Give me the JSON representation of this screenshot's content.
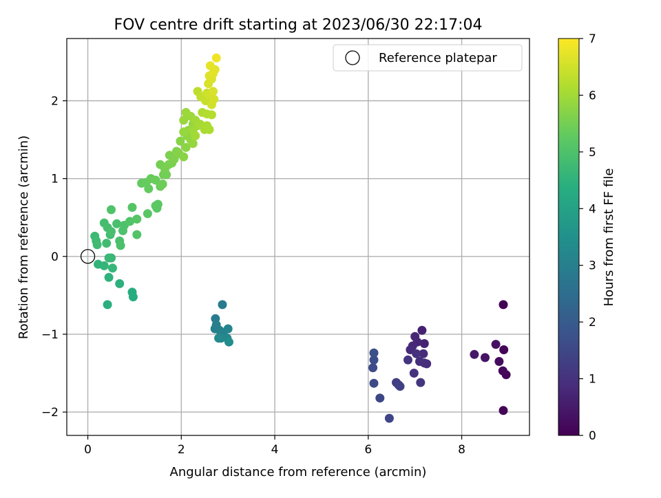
{
  "chart_data": {
    "type": "scatter",
    "title": "FOV centre drift starting at 2023/06/30 22:17:04",
    "xlabel": "Angular distance from reference (arcmin)",
    "ylabel": "Rotation from reference (arcmin)",
    "xlim": [
      -0.45,
      9.45
    ],
    "ylim": [
      -2.3,
      2.8
    ],
    "xticks": [
      0,
      2,
      4,
      6,
      8
    ],
    "xtick_labels": [
      "0",
      "2",
      "4",
      "6",
      "8"
    ],
    "yticks": [
      -2,
      -1,
      0,
      1,
      2
    ],
    "ytick_labels": [
      "−2",
      "−1",
      "0",
      "1",
      "2"
    ],
    "grid": true,
    "legend": {
      "placement": "top-right",
      "entries": [
        "Reference platepar"
      ]
    },
    "reference_point": {
      "label": "Reference platepar",
      "x": 0,
      "y": 0
    },
    "colorbar": {
      "label": "Hours from first FF file",
      "colormap": "viridis",
      "range": [
        0,
        7
      ],
      "ticks": [
        0,
        1,
        2,
        3,
        4,
        5,
        6,
        7
      ],
      "tick_labels": [
        "0",
        "1",
        "2",
        "3",
        "4",
        "5",
        "6",
        "7"
      ]
    },
    "points": [
      [
        8.89,
        -0.62,
        0.05
      ],
      [
        8.9,
        -1.2,
        0.07
      ],
      [
        8.95,
        -1.52,
        0.1
      ],
      [
        8.88,
        -1.47,
        0.12
      ],
      [
        8.89,
        -1.98,
        0.08
      ],
      [
        8.8,
        -1.35,
        0.22
      ],
      [
        8.73,
        -1.13,
        0.3
      ],
      [
        8.5,
        -1.3,
        0.38
      ],
      [
        8.27,
        -1.26,
        0.45
      ],
      [
        7.15,
        -0.95,
        0.62
      ],
      [
        7.2,
        -1.12,
        0.68
      ],
      [
        7.05,
        -1.1,
        0.72
      ],
      [
        7.0,
        -1.03,
        0.75
      ],
      [
        6.95,
        -1.15,
        0.8
      ],
      [
        6.9,
        -1.2,
        0.82
      ],
      [
        7.18,
        -1.25,
        0.85
      ],
      [
        7.25,
        -1.38,
        0.88
      ],
      [
        7.1,
        -1.35,
        0.92
      ],
      [
        7.2,
        -1.37,
        0.94
      ],
      [
        7.03,
        -1.25,
        0.97
      ],
      [
        6.98,
        -1.5,
        1.0
      ],
      [
        6.85,
        -1.33,
        1.05
      ],
      [
        7.12,
        -1.62,
        1.08
      ],
      [
        6.6,
        -1.62,
        1.25
      ],
      [
        6.65,
        -1.65,
        1.3
      ],
      [
        6.68,
        -1.67,
        1.35
      ],
      [
        6.45,
        -2.08,
        1.45
      ],
      [
        6.25,
        -1.82,
        1.5
      ],
      [
        6.12,
        -1.63,
        1.55
      ],
      [
        6.1,
        -1.43,
        1.6
      ],
      [
        6.12,
        -1.33,
        1.65
      ],
      [
        6.12,
        -1.24,
        1.7
      ],
      [
        2.88,
        -0.62,
        2.85
      ],
      [
        2.73,
        -0.8,
        2.9
      ],
      [
        2.75,
        -0.88,
        2.95
      ],
      [
        2.72,
        -0.93,
        3.0
      ],
      [
        2.82,
        -0.95,
        3.05
      ],
      [
        2.9,
        -0.98,
        3.1
      ],
      [
        3.0,
        -0.93,
        3.15
      ],
      [
        2.98,
        -1.05,
        3.2
      ],
      [
        2.85,
        -1.05,
        3.25
      ],
      [
        2.8,
        -1.05,
        3.3
      ],
      [
        3.02,
        -1.1,
        3.35
      ],
      [
        0.95,
        -0.46,
        4.3
      ],
      [
        0.97,
        -0.52,
        4.35
      ],
      [
        0.42,
        -0.62,
        4.4
      ],
      [
        0.68,
        -0.35,
        4.45
      ],
      [
        0.45,
        -0.27,
        4.5
      ],
      [
        0.22,
        -0.1,
        4.55
      ],
      [
        0.35,
        -0.12,
        4.58
      ],
      [
        0.53,
        -0.15,
        4.62
      ],
      [
        0.5,
        -0.02,
        4.65
      ],
      [
        0.45,
        -0.02,
        4.68
      ],
      [
        0.15,
        0.26,
        4.72
      ],
      [
        0.18,
        0.2,
        4.75
      ],
      [
        0.2,
        0.15,
        4.78
      ],
      [
        0.4,
        0.17,
        4.8
      ],
      [
        0.48,
        0.28,
        4.82
      ],
      [
        0.35,
        0.43,
        4.85
      ],
      [
        0.42,
        0.37,
        4.87
      ],
      [
        0.5,
        0.32,
        4.9
      ],
      [
        0.62,
        0.42,
        4.92
      ],
      [
        0.68,
        0.2,
        4.94
      ],
      [
        0.7,
        0.14,
        4.96
      ],
      [
        0.75,
        0.33,
        4.98
      ],
      [
        0.78,
        0.4,
        5.0
      ],
      [
        0.5,
        0.6,
        5.02
      ],
      [
        0.9,
        0.45,
        5.05
      ],
      [
        1.05,
        0.28,
        5.07
      ],
      [
        0.95,
        0.63,
        5.1
      ],
      [
        1.05,
        0.48,
        5.13
      ],
      [
        1.28,
        0.55,
        5.15
      ],
      [
        1.48,
        0.62,
        5.18
      ],
      [
        1.5,
        0.67,
        5.2
      ],
      [
        1.45,
        0.65,
        5.22
      ],
      [
        1.15,
        0.94,
        5.28
      ],
      [
        1.3,
        0.87,
        5.3
      ],
      [
        1.25,
        0.95,
        5.32
      ],
      [
        1.35,
        1.0,
        5.35
      ],
      [
        1.45,
        0.98,
        5.38
      ],
      [
        1.55,
        0.9,
        5.4
      ],
      [
        1.6,
        0.93,
        5.43
      ],
      [
        1.62,
        1.05,
        5.45
      ],
      [
        1.68,
        1.05,
        5.48
      ],
      [
        1.55,
        1.18,
        5.5
      ],
      [
        1.65,
        1.12,
        5.52
      ],
      [
        1.73,
        1.18,
        5.55
      ],
      [
        1.8,
        1.2,
        5.58
      ],
      [
        1.75,
        1.3,
        5.6
      ],
      [
        1.85,
        1.25,
        5.62
      ],
      [
        1.9,
        1.35,
        5.65
      ],
      [
        1.95,
        1.32,
        5.68
      ],
      [
        1.98,
        1.48,
        5.7
      ],
      [
        2.05,
        1.28,
        5.72
      ],
      [
        2.1,
        1.4,
        5.75
      ],
      [
        2.12,
        1.55,
        5.78
      ],
      [
        2.15,
        1.62,
        5.8
      ],
      [
        2.2,
        1.5,
        5.82
      ],
      [
        2.25,
        1.7,
        5.85
      ],
      [
        2.25,
        1.45,
        5.87
      ],
      [
        2.05,
        1.6,
        5.88
      ],
      [
        2.05,
        1.75,
        5.9
      ],
      [
        2.1,
        1.85,
        5.92
      ],
      [
        2.2,
        1.8,
        5.94
      ],
      [
        2.25,
        1.62,
        5.96
      ],
      [
        2.3,
        1.75,
        5.98
      ],
      [
        2.35,
        1.68,
        6.0
      ],
      [
        2.3,
        1.55,
        6.02
      ],
      [
        2.4,
        1.7,
        6.05
      ],
      [
        2.5,
        1.63,
        6.08
      ],
      [
        2.55,
        1.68,
        6.1
      ],
      [
        2.6,
        1.63,
        6.12
      ],
      [
        2.45,
        1.85,
        6.15
      ],
      [
        2.55,
        1.83,
        6.18
      ],
      [
        2.65,
        1.82,
        6.2
      ],
      [
        2.35,
        2.12,
        6.3
      ],
      [
        2.42,
        2.05,
        6.35
      ],
      [
        2.52,
        2.0,
        6.4
      ],
      [
        2.55,
        2.1,
        6.45
      ],
      [
        2.6,
        2.08,
        6.5
      ],
      [
        2.65,
        1.95,
        6.52
      ],
      [
        2.7,
        2.02,
        6.55
      ],
      [
        2.68,
        2.12,
        6.58
      ],
      [
        2.58,
        2.22,
        6.6
      ],
      [
        2.65,
        2.28,
        6.62
      ],
      [
        2.6,
        2.32,
        6.65
      ],
      [
        2.68,
        2.35,
        6.68
      ],
      [
        2.72,
        2.4,
        6.72
      ],
      [
        2.62,
        2.45,
        6.75
      ],
      [
        2.75,
        2.55,
        6.85
      ]
    ]
  }
}
